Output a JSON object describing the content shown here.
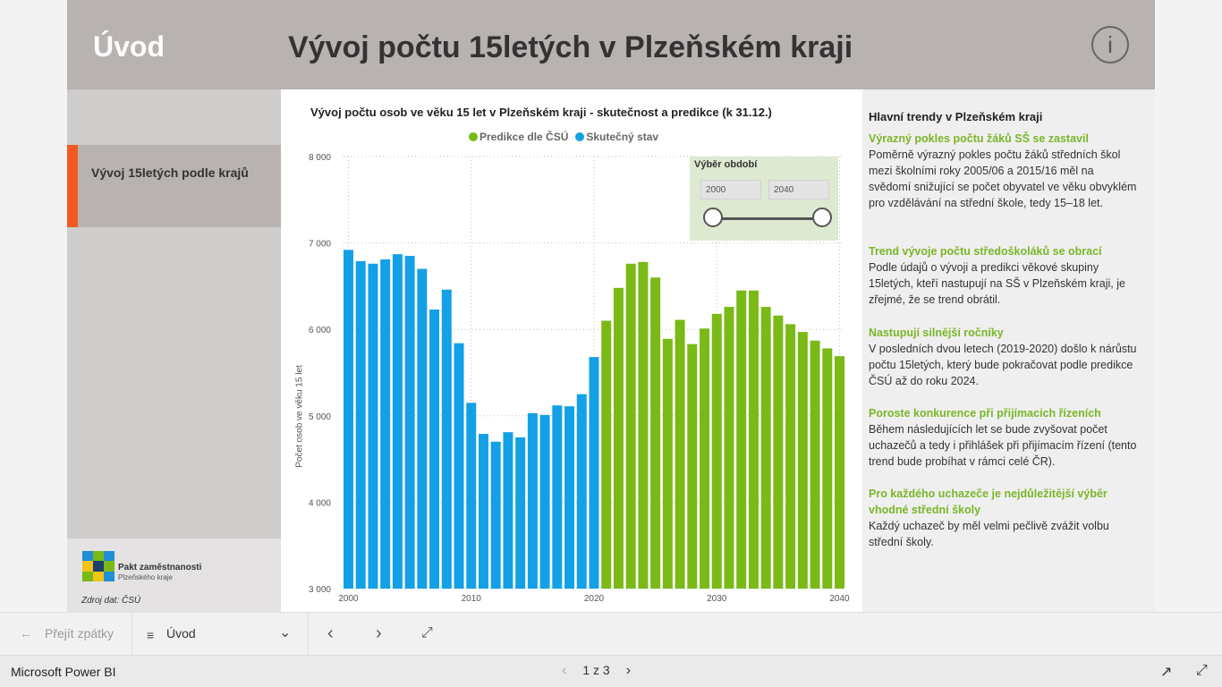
{
  "header": {
    "home_label": "Úvod",
    "title": "Vývoj počtu 15letých v Plzeňském kraji",
    "info_icon": "i"
  },
  "sidebar": {
    "nav_label": "Vývoj 15letých podle krajů",
    "logo_name": "Pakt zaměstnanosti",
    "logo_sub": "Plzeňského kraje",
    "source": "Zdroj dat: ČSÚ"
  },
  "chart": {
    "title": "Vývoj počtu osob ve věku 15 let v Plzeňském kraji - skutečnost a predikce (k 31.12.)",
    "ylabel": "Počet osob ve věku 15 let",
    "legend": [
      {
        "label": "Predikce dle ČSÚ",
        "color": "#7ab916"
      },
      {
        "label": "Skutečný stav",
        "color": "#14a0e6"
      }
    ]
  },
  "slicer": {
    "title": "Výběr období",
    "from": "2000",
    "to": "2040"
  },
  "chart_data": {
    "type": "bar",
    "x_ticks": [
      2000,
      2010,
      2020,
      2030,
      2040
    ],
    "y_ticks": [
      3000,
      4000,
      5000,
      6000,
      7000,
      8000
    ],
    "y_tick_labels": [
      "3 000",
      "4 000",
      "5 000",
      "6 000",
      "7 000",
      "8 000"
    ],
    "ylim": [
      3000,
      8000
    ],
    "xlim": [
      2000,
      2040
    ],
    "grid": true,
    "legend_position": "top",
    "series": [
      {
        "name": "Skutečný stav",
        "color": "#14a0e6",
        "x": [
          2000,
          2001,
          2002,
          2003,
          2004,
          2005,
          2006,
          2007,
          2008,
          2009,
          2010,
          2011,
          2012,
          2013,
          2014,
          2015,
          2016,
          2017,
          2018,
          2019,
          2020
        ],
        "values": [
          6920,
          6790,
          6760,
          6810,
          6870,
          6850,
          6700,
          6230,
          6460,
          5840,
          5150,
          4790,
          4700,
          4810,
          4750,
          5030,
          5010,
          5120,
          5110,
          5250,
          5680
        ]
      },
      {
        "name": "Predikce dle ČSÚ",
        "color": "#7ab916",
        "x": [
          2021,
          2022,
          2023,
          2024,
          2025,
          2026,
          2027,
          2028,
          2029,
          2030,
          2031,
          2032,
          2033,
          2034,
          2035,
          2036,
          2037,
          2038,
          2039,
          2040
        ],
        "values": [
          6100,
          6480,
          6760,
          6780,
          6600,
          5890,
          6110,
          5830,
          6010,
          6180,
          6260,
          6450,
          6450,
          6260,
          6160,
          6060,
          5970,
          5870,
          5780,
          5690
        ]
      }
    ]
  },
  "trends": {
    "title": "Hlavní trendy v Plzeňském kraji",
    "items": [
      {
        "head": "Výrazný pokles počtu žáků SŠ se zastavil",
        "body": "Poměrně výrazný pokles počtu žáků středních škol mezi školními roky 2005/06 a 2015/16 měl na svědomí snižující se počet obyvatel ve věku obvyklém pro vzdělávání na střední škole, tedy 15–18 let."
      },
      {
        "head": "Trend vývoje počtu středoškoláků se obrací",
        "body": "Podle údajů o vývoji a predikci věkové skupiny 15letých, kteří nastupují na SŠ v Plzeňském kraji, je zřejmé, že se trend obrátil."
      },
      {
        "head": "Nastupují silnější ročníky",
        "body": "V posledních dvou letech (2019-2020) došlo k nárůstu počtu 15letých, který bude pokračovat podle predikce ČSÚ až do roku 2024."
      },
      {
        "head": "Poroste konkurence při přijímacích řízeních",
        "body": "Během následujících let se bude zvyšovat počet uchazečů a tedy i přihlášek při přijímacím řízení (tento trend bude probíhat v rámci celé ČR)."
      },
      {
        "head": "Pro každého uchazeče je nejdůležitější výběr vhodné střední školy",
        "body": "Každý uchazeč by měl velmi pečlivě zvážit volbu střední školy."
      }
    ]
  },
  "pagebar": {
    "back_label": "Přejít zpátky",
    "page_name": "Úvod"
  },
  "statusbar": {
    "brand": "Microsoft Power BI",
    "pager": "1 z 3"
  }
}
